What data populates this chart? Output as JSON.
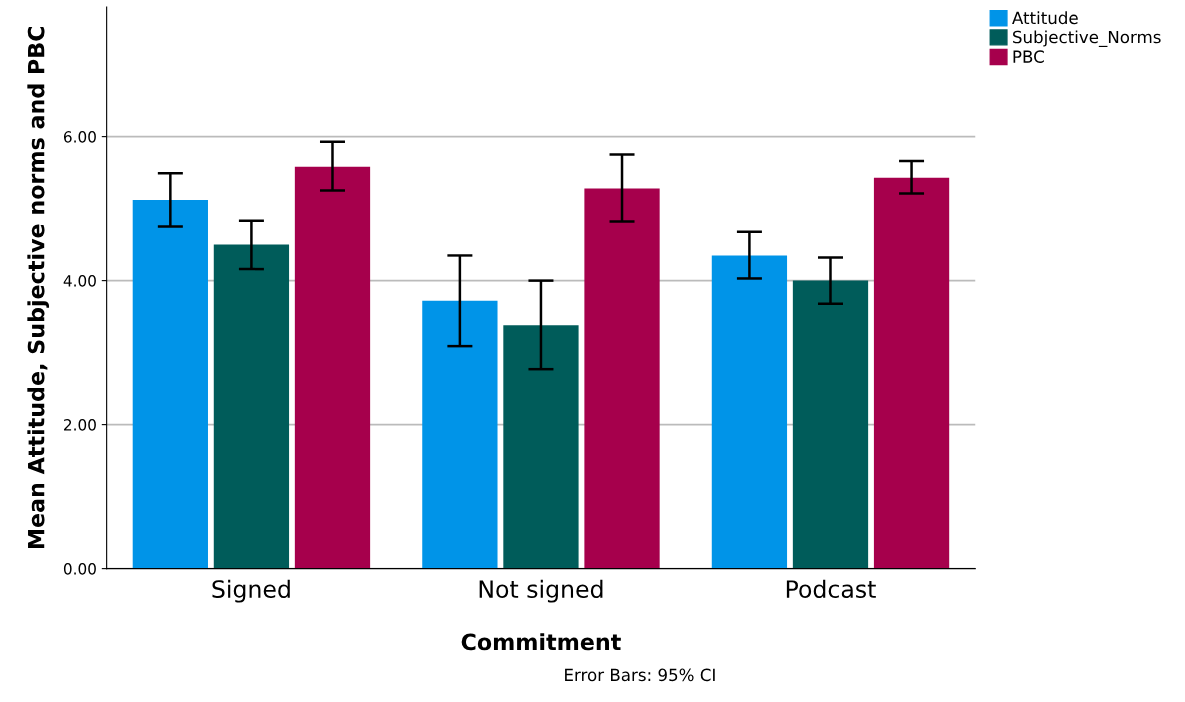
{
  "chart_data": {
    "type": "bar",
    "xlabel": "Commitment",
    "ylabel": "Mean Attitude, Subjective norms and PBC",
    "categories": [
      "Signed",
      "Not signed",
      "Podcast"
    ],
    "series": [
      {
        "name": "Attitude",
        "color": "#0094e8",
        "values": [
          5.12,
          3.72,
          4.35
        ],
        "errors": [
          [
            4.75,
            5.49
          ],
          [
            3.09,
            4.35
          ],
          [
            4.03,
            4.68
          ]
        ]
      },
      {
        "name": "Subjective_Norms",
        "color": "#005c5a",
        "values": [
          4.5,
          3.38,
          4.0
        ],
        "errors": [
          [
            4.16,
            4.83
          ],
          [
            2.77,
            4.0
          ],
          [
            3.68,
            4.32
          ]
        ]
      },
      {
        "name": "PBC",
        "color": "#a6004c",
        "values": [
          5.58,
          5.28,
          5.43
        ],
        "errors": [
          [
            5.25,
            5.93
          ],
          [
            4.82,
            5.75
          ],
          [
            5.21,
            5.66
          ]
        ]
      }
    ],
    "ylim": [
      0,
      7.8
    ],
    "yticks": [
      {
        "value": 0,
        "label": "0.00"
      },
      {
        "value": 2,
        "label": "2.00"
      },
      {
        "value": 4,
        "label": "4.00"
      },
      {
        "value": 6,
        "label": "6.00"
      }
    ],
    "grid": "y",
    "legend": "top right",
    "annotations": [
      "Error Bars: 95% CI"
    ]
  }
}
